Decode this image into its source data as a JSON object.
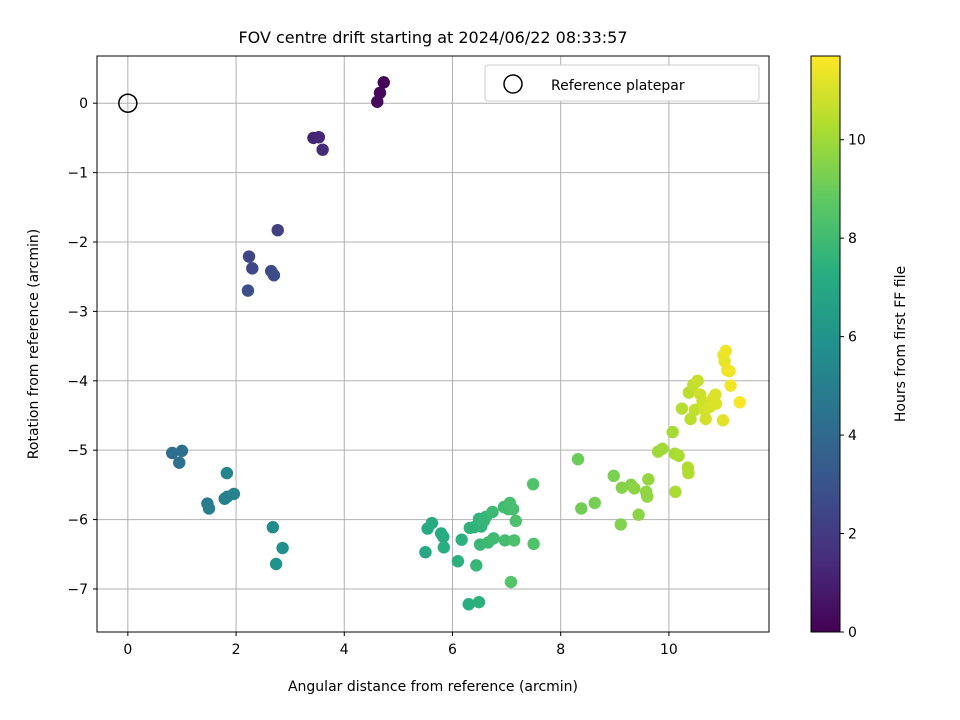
{
  "chart_data": {
    "type": "scatter",
    "title": "FOV centre drift starting at 2024/06/22 08:33:57",
    "xlabel": "Angular distance from reference (arcmin)",
    "ylabel": "Rotation from reference (arcmin)",
    "xlim": [
      -0.57,
      11.85
    ],
    "ylim": [
      -7.62,
      0.68
    ],
    "xticks": [
      0,
      2,
      4,
      6,
      8,
      10
    ],
    "yticks": [
      0,
      -1,
      -2,
      -3,
      -4,
      -5,
      -6,
      -7
    ],
    "grid": true,
    "legend": {
      "position": "top-right",
      "entries": [
        "Reference platepar"
      ]
    },
    "colorbar": {
      "label": "Hours from first FF file",
      "colormap": "viridis",
      "range": [
        0,
        11.7
      ],
      "ticks": [
        0,
        2,
        4,
        6,
        8,
        10
      ]
    },
    "reference_point": {
      "x": 0,
      "y": 0
    },
    "points": [
      {
        "x": 4.73,
        "y": 0.3,
        "h": 0.1
      },
      {
        "x": 4.66,
        "y": 0.15,
        "h": 0.2
      },
      {
        "x": 4.61,
        "y": 0.02,
        "h": 0.3
      },
      {
        "x": 3.43,
        "y": -0.5,
        "h": 1.2
      },
      {
        "x": 3.53,
        "y": -0.49,
        "h": 1.3
      },
      {
        "x": 3.6,
        "y": -0.67,
        "h": 1.4
      },
      {
        "x": 2.77,
        "y": -1.83,
        "h": 2.2
      },
      {
        "x": 2.24,
        "y": -2.21,
        "h": 2.4
      },
      {
        "x": 2.3,
        "y": -2.38,
        "h": 2.5
      },
      {
        "x": 2.65,
        "y": -2.42,
        "h": 2.6
      },
      {
        "x": 2.7,
        "y": -2.48,
        "h": 2.7
      },
      {
        "x": 2.22,
        "y": -2.7,
        "h": 2.8
      },
      {
        "x": 0.82,
        "y": -5.04,
        "h": 4.2
      },
      {
        "x": 1.0,
        "y": -5.01,
        "h": 4.3
      },
      {
        "x": 0.95,
        "y": -5.18,
        "h": 4.4
      },
      {
        "x": 1.47,
        "y": -5.77,
        "h": 4.8
      },
      {
        "x": 1.5,
        "y": -5.84,
        "h": 4.9
      },
      {
        "x": 1.79,
        "y": -5.7,
        "h": 5.0
      },
      {
        "x": 1.84,
        "y": -5.67,
        "h": 5.1
      },
      {
        "x": 1.96,
        "y": -5.63,
        "h": 5.2
      },
      {
        "x": 1.83,
        "y": -5.33,
        "h": 5.3
      },
      {
        "x": 2.68,
        "y": -6.11,
        "h": 5.6
      },
      {
        "x": 2.86,
        "y": -6.41,
        "h": 5.8
      },
      {
        "x": 2.74,
        "y": -6.64,
        "h": 5.9
      },
      {
        "x": 5.5,
        "y": -6.47,
        "h": 7.0
      },
      {
        "x": 5.54,
        "y": -6.13,
        "h": 7.1
      },
      {
        "x": 5.62,
        "y": -6.05,
        "h": 7.1
      },
      {
        "x": 5.79,
        "y": -6.2,
        "h": 7.2
      },
      {
        "x": 5.83,
        "y": -6.25,
        "h": 7.2
      },
      {
        "x": 5.84,
        "y": -6.4,
        "h": 7.3
      },
      {
        "x": 6.1,
        "y": -6.6,
        "h": 7.4
      },
      {
        "x": 6.17,
        "y": -6.29,
        "h": 7.4
      },
      {
        "x": 6.32,
        "y": -6.12,
        "h": 7.5
      },
      {
        "x": 6.4,
        "y": -6.11,
        "h": 7.5
      },
      {
        "x": 6.49,
        "y": -5.99,
        "h": 7.6
      },
      {
        "x": 6.53,
        "y": -6.1,
        "h": 7.6
      },
      {
        "x": 6.58,
        "y": -6.02,
        "h": 7.7
      },
      {
        "x": 6.62,
        "y": -5.96,
        "h": 7.7
      },
      {
        "x": 6.44,
        "y": -6.66,
        "h": 7.8
      },
      {
        "x": 6.51,
        "y": -6.36,
        "h": 7.8
      },
      {
        "x": 6.66,
        "y": -6.33,
        "h": 7.9
      },
      {
        "x": 6.74,
        "y": -5.89,
        "h": 7.9
      },
      {
        "x": 6.76,
        "y": -6.27,
        "h": 8.0
      },
      {
        "x": 6.95,
        "y": -5.82,
        "h": 8.0
      },
      {
        "x": 6.97,
        "y": -6.3,
        "h": 8.1
      },
      {
        "x": 7.03,
        "y": -5.85,
        "h": 8.1
      },
      {
        "x": 7.06,
        "y": -5.76,
        "h": 8.2
      },
      {
        "x": 7.12,
        "y": -5.85,
        "h": 8.2
      },
      {
        "x": 7.17,
        "y": -6.02,
        "h": 8.3
      },
      {
        "x": 7.14,
        "y": -6.3,
        "h": 8.3
      },
      {
        "x": 7.49,
        "y": -5.49,
        "h": 8.4
      },
      {
        "x": 7.5,
        "y": -6.35,
        "h": 8.4
      },
      {
        "x": 7.08,
        "y": -6.9,
        "h": 8.5
      },
      {
        "x": 6.3,
        "y": -7.22,
        "h": 7.3
      },
      {
        "x": 6.49,
        "y": -7.19,
        "h": 7.4
      },
      {
        "x": 8.32,
        "y": -5.13,
        "h": 9.0
      },
      {
        "x": 8.38,
        "y": -5.84,
        "h": 9.1
      },
      {
        "x": 8.63,
        "y": -5.76,
        "h": 9.2
      },
      {
        "x": 8.98,
        "y": -5.37,
        "h": 9.3
      },
      {
        "x": 9.11,
        "y": -6.07,
        "h": 9.4
      },
      {
        "x": 9.13,
        "y": -5.54,
        "h": 9.5
      },
      {
        "x": 9.3,
        "y": -5.5,
        "h": 9.5
      },
      {
        "x": 9.36,
        "y": -5.55,
        "h": 9.6
      },
      {
        "x": 9.44,
        "y": -5.93,
        "h": 9.6
      },
      {
        "x": 9.58,
        "y": -5.6,
        "h": 9.7
      },
      {
        "x": 9.6,
        "y": -5.67,
        "h": 9.7
      },
      {
        "x": 9.62,
        "y": -5.42,
        "h": 9.8
      },
      {
        "x": 9.8,
        "y": -5.02,
        "h": 10.0
      },
      {
        "x": 9.88,
        "y": -4.98,
        "h": 10.0
      },
      {
        "x": 10.07,
        "y": -4.74,
        "h": 10.1
      },
      {
        "x": 10.11,
        "y": -5.05,
        "h": 10.1
      },
      {
        "x": 10.18,
        "y": -5.08,
        "h": 10.2
      },
      {
        "x": 10.12,
        "y": -5.6,
        "h": 10.2
      },
      {
        "x": 10.35,
        "y": -5.25,
        "h": 10.3
      },
      {
        "x": 10.36,
        "y": -5.33,
        "h": 10.3
      },
      {
        "x": 10.24,
        "y": -4.4,
        "h": 10.4
      },
      {
        "x": 10.37,
        "y": -4.17,
        "h": 10.5
      },
      {
        "x": 10.4,
        "y": -4.55,
        "h": 10.5
      },
      {
        "x": 10.45,
        "y": -4.06,
        "h": 10.6
      },
      {
        "x": 10.48,
        "y": -4.42,
        "h": 10.6
      },
      {
        "x": 10.53,
        "y": -4.0,
        "h": 10.7
      },
      {
        "x": 10.58,
        "y": -4.2,
        "h": 10.8
      },
      {
        "x": 10.62,
        "y": -4.3,
        "h": 10.8
      },
      {
        "x": 10.66,
        "y": -4.42,
        "h": 10.9
      },
      {
        "x": 10.68,
        "y": -4.55,
        "h": 10.9
      },
      {
        "x": 10.75,
        "y": -4.38,
        "h": 11.0
      },
      {
        "x": 10.82,
        "y": -4.25,
        "h": 11.0
      },
      {
        "x": 10.86,
        "y": -4.2,
        "h": 11.1
      },
      {
        "x": 10.87,
        "y": -4.33,
        "h": 11.1
      },
      {
        "x": 11.0,
        "y": -4.57,
        "h": 11.2
      },
      {
        "x": 11.01,
        "y": -3.63,
        "h": 11.3
      },
      {
        "x": 11.03,
        "y": -3.72,
        "h": 11.3
      },
      {
        "x": 11.05,
        "y": -3.57,
        "h": 11.4
      },
      {
        "x": 11.08,
        "y": -3.85,
        "h": 11.4
      },
      {
        "x": 11.12,
        "y": -3.86,
        "h": 11.5
      },
      {
        "x": 11.14,
        "y": -4.07,
        "h": 11.5
      },
      {
        "x": 11.31,
        "y": -4.31,
        "h": 11.6
      }
    ]
  }
}
